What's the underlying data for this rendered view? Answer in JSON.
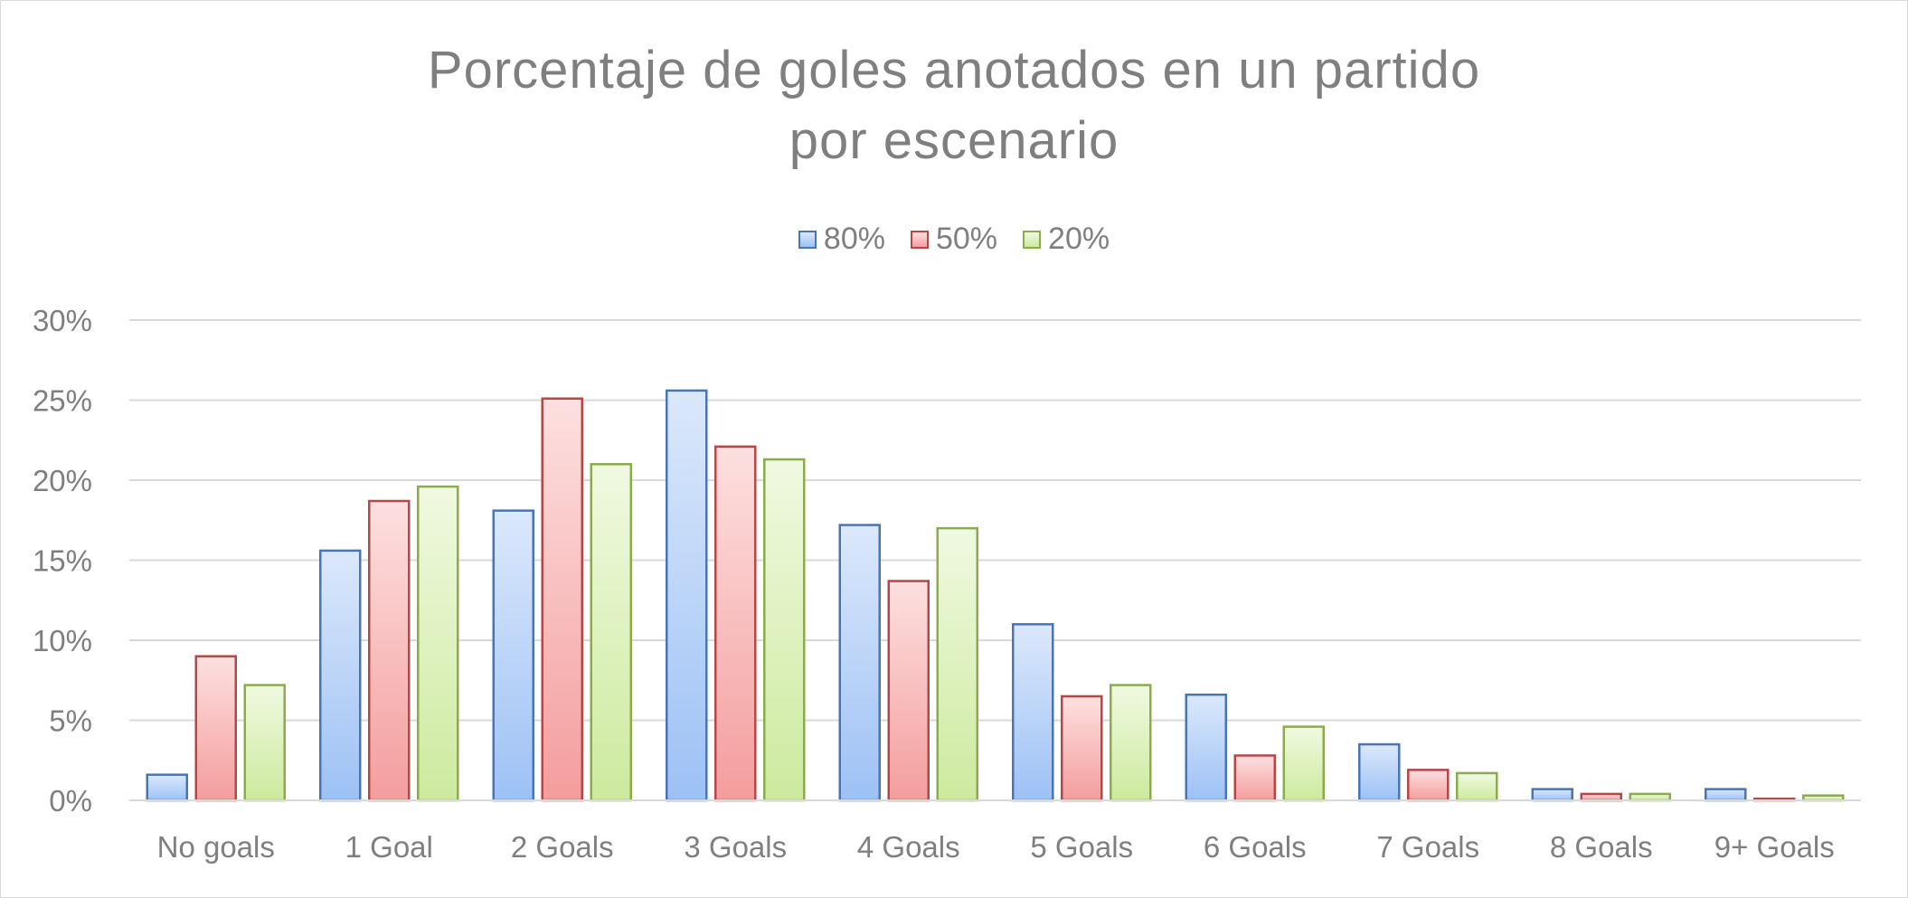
{
  "chart_data": {
    "type": "bar",
    "title_line1": "Porcentaje de goles anotados en un partido",
    "title_line2": "por escenario",
    "categories": [
      "No goals",
      "1 Goal",
      "2 Goals",
      "3 Goals",
      "4 Goals",
      "5 Goals",
      "6 Goals",
      "7 Goals",
      "8 Goals",
      "9+ Goals"
    ],
    "y_ticks": [
      "0%",
      "5%",
      "10%",
      "15%",
      "20%",
      "25%",
      "30%"
    ],
    "ylim": [
      0,
      30
    ],
    "grid": true,
    "legend_position": "top",
    "series": [
      {
        "name": "80%",
        "values": [
          1.6,
          15.6,
          18.1,
          25.6,
          17.2,
          11.0,
          6.6,
          3.5,
          0.7,
          0.7
        ],
        "color_top": "#dbe8fb",
        "color_bottom": "#9dc1f5",
        "stroke": "#4a75b5"
      },
      {
        "name": "50%",
        "values": [
          9.0,
          18.7,
          25.1,
          22.1,
          13.7,
          6.5,
          2.8,
          1.9,
          0.4,
          0.1
        ],
        "color_top": "#fde0e0",
        "color_bottom": "#f49d9d",
        "stroke": "#b64747"
      },
      {
        "name": "20%",
        "values": [
          7.2,
          19.6,
          21.0,
          21.3,
          17.0,
          7.2,
          4.6,
          1.7,
          0.4,
          0.3
        ],
        "color_top": "#f0f9e1",
        "color_bottom": "#cdea9e",
        "stroke": "#8bab4c"
      }
    ]
  }
}
